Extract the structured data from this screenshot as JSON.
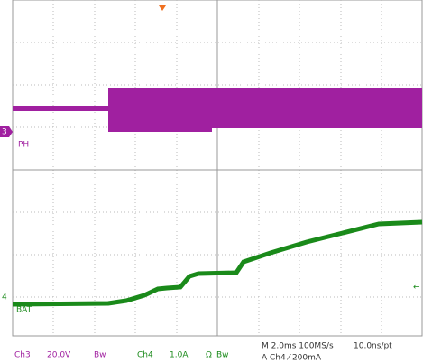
{
  "channels": {
    "ch3": {
      "marker": "3",
      "label": "PH"
    },
    "ch4": {
      "marker": "4",
      "label": "BAT"
    }
  },
  "readout": {
    "ch3_name": "Ch3",
    "ch3_scale": "20.0V",
    "ch3_bw": "Bw",
    "ch4_name": "Ch4",
    "ch4_scale": "1.0A",
    "ch4_ohm": "Ω",
    "ch4_bw": "Bw",
    "timebase": "M 2.0ms 100MS/s",
    "resolution": "10.0ns/pt",
    "trigger": "A  Ch4  ⁄  200mA"
  }
}
